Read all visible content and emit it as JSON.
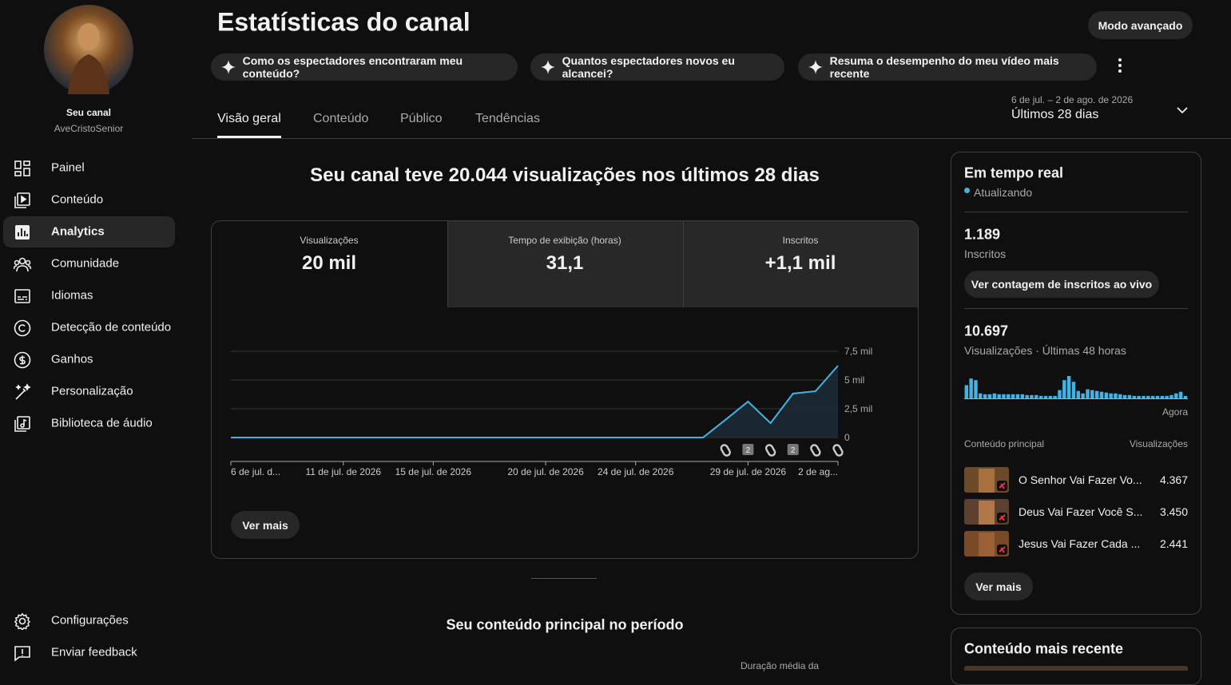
{
  "sidebar": {
    "channel_label": "Seu canal",
    "channel_name": "AveCristoSenior",
    "nav": [
      "Painel",
      "Conteúdo",
      "Analytics",
      "Comunidade",
      "Idiomas",
      "Detecção de conteúdo",
      "Ganhos",
      "Personalização",
      "Biblioteca de áudio"
    ],
    "footer": [
      "Configurações",
      "Enviar feedback"
    ]
  },
  "header": {
    "title": "Estatísticas do canal",
    "advanced_button": "Modo avançado",
    "suggestions": [
      "Como os espectadores encontraram meu conteúdo?",
      "Quantos espectadores novos eu alcancei?",
      "Resuma o desempenho do meu vídeo mais recente"
    ],
    "tabs": [
      "Visão geral",
      "Conteúdo",
      "Público",
      "Tendências"
    ],
    "date_range": "6 de jul. – 2 de ago. de 2026",
    "period": "Últimos 28 dias"
  },
  "overview": {
    "summary": "Seu canal teve 20.044 visualizações nos últimos 28 dias",
    "metrics": [
      {
        "label": "Visualizações",
        "value": "20 mil"
      },
      {
        "label": "Tempo de exibição (horas)",
        "value": "31,1"
      },
      {
        "label": "Inscritos",
        "value": "+1,1 mil"
      }
    ],
    "chart": {
      "type": "line",
      "area": true,
      "color": "#41b4e6",
      "categories": [
        "6 de jul. d...",
        null,
        null,
        null,
        null,
        "11 de jul. de 2026",
        null,
        null,
        null,
        "15 de jul. de 2026",
        null,
        null,
        null,
        null,
        "20 de jul. de 2026",
        null,
        null,
        null,
        "24 de jul. de 2026",
        null,
        null,
        null,
        null,
        "29 de jul. de 2026",
        null,
        null,
        null,
        "2 de ag..."
      ],
      "values": [
        0,
        0,
        0,
        0,
        0,
        0,
        0,
        0,
        0,
        0,
        0,
        0,
        0,
        0,
        0,
        0,
        0,
        0,
        0,
        0,
        0,
        0,
        1550,
        3125,
        1250,
        3820,
        4030,
        6250
      ],
      "ylim": [
        0,
        7500
      ],
      "yticks": [
        {
          "value": 7500,
          "label": "7,5 mil"
        },
        {
          "value": 5000,
          "label": "5 mil"
        },
        {
          "value": 2500,
          "label": "2,5 mil"
        },
        0
      ],
      "grid": true,
      "markers": [
        null,
        "2",
        null,
        "2",
        null,
        null
      ]
    },
    "more_button": "Ver mais"
  },
  "top_content": {
    "title": "Seu conteúdo principal no período",
    "column": "Duração média da"
  },
  "realtime": {
    "title": "Em tempo real",
    "status": "Atualizando",
    "subscribers": "1.189",
    "subscribers_label": "Inscritos",
    "live_button": "Ver contagem de inscritos ao vivo",
    "views": "10.697",
    "views_label": "Visualizações · Últimas 48 horas",
    "chart": {
      "type": "bar",
      "color": "#41b4e6",
      "values": [
        496,
        744,
        682,
        186,
        155,
        155,
        186,
        155,
        155,
        155,
        155,
        155,
        155,
        124,
        124,
        124,
        93,
        93,
        93,
        93,
        310,
        682,
        837,
        620,
        279,
        186,
        341,
        310,
        279,
        248,
        217,
        186,
        186,
        155,
        124,
        124,
        93,
        93,
        93,
        93,
        93,
        93,
        93,
        93,
        124,
        186,
        248,
        93
      ],
      "end_label": "Agora"
    },
    "table_headers": [
      "Conteúdo principal",
      "Visualizações"
    ],
    "rows": [
      {
        "title": "O Senhor Vai Fazer Vo...",
        "views": "4.367"
      },
      {
        "title": "Deus Vai Fazer Você S...",
        "views": "3.450"
      },
      {
        "title": "Jesus Vai Fazer Cada ...",
        "views": "2.441"
      }
    ],
    "more_button": "Ver mais"
  },
  "latest": {
    "title": "Conteúdo mais recente"
  }
}
